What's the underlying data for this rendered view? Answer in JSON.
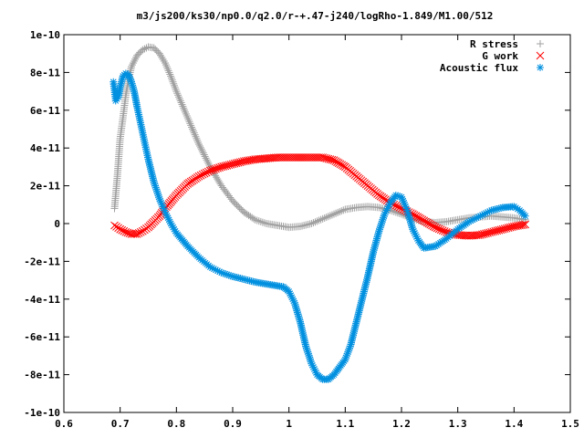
{
  "chart_data": {
    "type": "scatter",
    "title": "m3/js200/ks30/np0.0/q2.0/r-+.47-j240/logRho-1.849/M1.00/512",
    "xlabel": "",
    "ylabel": "",
    "xlim": [
      0.6,
      1.5
    ],
    "ylim": [
      -1e-10,
      1e-10
    ],
    "grid": false,
    "legend_position": "top-right",
    "x_ticks": [
      {
        "value": 0.6,
        "label": "0.6"
      },
      {
        "value": 0.7,
        "label": "0.7"
      },
      {
        "value": 0.8,
        "label": "0.8"
      },
      {
        "value": 0.9,
        "label": "0.9"
      },
      {
        "value": 1.0,
        "label": "1"
      },
      {
        "value": 1.1,
        "label": "1.1"
      },
      {
        "value": 1.2,
        "label": "1.2"
      },
      {
        "value": 1.3,
        "label": "1.3"
      },
      {
        "value": 1.4,
        "label": "1.4"
      },
      {
        "value": 1.5,
        "label": "1.5"
      }
    ],
    "y_ticks": [
      {
        "value": 1e-10,
        "label": "1e-10"
      },
      {
        "value": 8e-11,
        "label": "8e-11"
      },
      {
        "value": 6e-11,
        "label": "6e-11"
      },
      {
        "value": 4e-11,
        "label": "4e-11"
      },
      {
        "value": 2e-11,
        "label": "2e-11"
      },
      {
        "value": 0,
        "label": "0"
      },
      {
        "value": -2e-11,
        "label": "-2e-11"
      },
      {
        "value": -4e-11,
        "label": "-4e-11"
      },
      {
        "value": -6e-11,
        "label": "-6e-11"
      },
      {
        "value": -8e-11,
        "label": "-8e-11"
      },
      {
        "value": -1e-10,
        "label": "-1e-10"
      }
    ],
    "series": [
      {
        "name": "R stress",
        "marker": "plus",
        "color": "#a0a0a0",
        "points": [
          [
            0.69,
            8e-12
          ],
          [
            0.695,
            2.5e-11
          ],
          [
            0.7,
            4.5e-11
          ],
          [
            0.705,
            5.6e-11
          ],
          [
            0.71,
            6.8e-11
          ],
          [
            0.715,
            7.6e-11
          ],
          [
            0.72,
            8.3e-11
          ],
          [
            0.73,
            8.9e-11
          ],
          [
            0.74,
            9.2e-11
          ],
          [
            0.75,
            9.35e-11
          ],
          [
            0.76,
            9.3e-11
          ],
          [
            0.77,
            9e-11
          ],
          [
            0.78,
            8.5e-11
          ],
          [
            0.79,
            7.8e-11
          ],
          [
            0.8,
            7e-11
          ],
          [
            0.82,
            5.6e-11
          ],
          [
            0.84,
            4.2e-11
          ],
          [
            0.86,
            3e-11
          ],
          [
            0.88,
            2e-11
          ],
          [
            0.9,
            1.2e-11
          ],
          [
            0.92,
            6e-12
          ],
          [
            0.94,
            2e-12
          ],
          [
            0.96,
            0.0
          ],
          [
            0.98,
            -1e-12
          ],
          [
            1.0,
            -2e-12
          ],
          [
            1.02,
            -1.5e-12
          ],
          [
            1.04,
            0.0
          ],
          [
            1.06,
            2.5e-12
          ],
          [
            1.08,
            5e-12
          ],
          [
            1.1,
            7.5e-12
          ],
          [
            1.12,
            8.5e-12
          ],
          [
            1.14,
            9e-12
          ],
          [
            1.16,
            8.5e-12
          ],
          [
            1.18,
            7e-12
          ],
          [
            1.2,
            5e-12
          ],
          [
            1.22,
            2.5e-12
          ],
          [
            1.24,
            1e-12
          ],
          [
            1.26,
            5e-13
          ],
          [
            1.28,
            1e-12
          ],
          [
            1.3,
            2e-12
          ],
          [
            1.32,
            3e-12
          ],
          [
            1.34,
            3.5e-12
          ],
          [
            1.36,
            4e-12
          ],
          [
            1.38,
            3.5e-12
          ],
          [
            1.4,
            3e-12
          ],
          [
            1.42,
            2e-12
          ]
        ]
      },
      {
        "name": "G work",
        "marker": "cross",
        "color": "#ff0000",
        "points": [
          [
            0.69,
            -1e-12
          ],
          [
            0.7,
            -3e-12
          ],
          [
            0.71,
            -4.5e-12
          ],
          [
            0.72,
            -5.5e-12
          ],
          [
            0.73,
            -5.5e-12
          ],
          [
            0.74,
            -4e-12
          ],
          [
            0.75,
            -2e-12
          ],
          [
            0.76,
            1e-12
          ],
          [
            0.77,
            4e-12
          ],
          [
            0.78,
            8e-12
          ],
          [
            0.8,
            1.5e-11
          ],
          [
            0.82,
            2.1e-11
          ],
          [
            0.84,
            2.5e-11
          ],
          [
            0.86,
            2.8e-11
          ],
          [
            0.88,
            3e-11
          ],
          [
            0.9,
            3.15e-11
          ],
          [
            0.92,
            3.3e-11
          ],
          [
            0.94,
            3.4e-11
          ],
          [
            0.96,
            3.45e-11
          ],
          [
            0.98,
            3.5e-11
          ],
          [
            1.0,
            3.5e-11
          ],
          [
            1.02,
            3.5e-11
          ],
          [
            1.04,
            3.5e-11
          ],
          [
            1.06,
            3.5e-11
          ],
          [
            1.08,
            3.35e-11
          ],
          [
            1.1,
            3e-11
          ],
          [
            1.12,
            2.5e-11
          ],
          [
            1.14,
            2e-11
          ],
          [
            1.16,
            1.5e-11
          ],
          [
            1.18,
            1.1e-11
          ],
          [
            1.2,
            8e-12
          ],
          [
            1.22,
            5e-12
          ],
          [
            1.24,
            1.5e-12
          ],
          [
            1.26,
            -2e-12
          ],
          [
            1.28,
            -4.5e-12
          ],
          [
            1.3,
            -6e-12
          ],
          [
            1.32,
            -6.5e-12
          ],
          [
            1.34,
            -6e-12
          ],
          [
            1.36,
            -4.5e-12
          ],
          [
            1.38,
            -3e-12
          ],
          [
            1.4,
            -1.5e-12
          ],
          [
            1.42,
            -5e-13
          ]
        ]
      },
      {
        "name": "Acoustic flux",
        "marker": "star",
        "color": "#0090e0",
        "points": [
          [
            0.688,
            7.5e-11
          ],
          [
            0.692,
            6.5e-11
          ],
          [
            0.697,
            6.7e-11
          ],
          [
            0.7,
            7.2e-11
          ],
          [
            0.705,
            7.8e-11
          ],
          [
            0.71,
            7.95e-11
          ],
          [
            0.715,
            7.85e-11
          ],
          [
            0.72,
            7.5e-11
          ],
          [
            0.725,
            7e-11
          ],
          [
            0.73,
            6.2e-11
          ],
          [
            0.74,
            4.8e-11
          ],
          [
            0.75,
            3.4e-11
          ],
          [
            0.76,
            2.2e-11
          ],
          [
            0.77,
            1.3e-11
          ],
          [
            0.78,
            6e-12
          ],
          [
            0.79,
            0.0
          ],
          [
            0.8,
            -5e-12
          ],
          [
            0.82,
            -1.2e-11
          ],
          [
            0.84,
            -1.8e-11
          ],
          [
            0.86,
            -2.3e-11
          ],
          [
            0.88,
            -2.6e-11
          ],
          [
            0.9,
            -2.8e-11
          ],
          [
            0.92,
            -2.95e-11
          ],
          [
            0.94,
            -3.1e-11
          ],
          [
            0.96,
            -3.2e-11
          ],
          [
            0.98,
            -3.3e-11
          ],
          [
            0.99,
            -3.35e-11
          ],
          [
            1.0,
            -3.6e-11
          ],
          [
            1.01,
            -4.2e-11
          ],
          [
            1.02,
            -5.2e-11
          ],
          [
            1.03,
            -6.5e-11
          ],
          [
            1.04,
            -7.4e-11
          ],
          [
            1.05,
            -8e-11
          ],
          [
            1.06,
            -8.25e-11
          ],
          [
            1.07,
            -8.25e-11
          ],
          [
            1.08,
            -8e-11
          ],
          [
            1.09,
            -7.6e-11
          ],
          [
            1.1,
            -7.2e-11
          ],
          [
            1.11,
            -6.4e-11
          ],
          [
            1.12,
            -5.2e-11
          ],
          [
            1.13,
            -4e-11
          ],
          [
            1.14,
            -2.8e-11
          ],
          [
            1.15,
            -1.5e-11
          ],
          [
            1.16,
            -4e-12
          ],
          [
            1.17,
            5e-12
          ],
          [
            1.18,
            1.1e-11
          ],
          [
            1.19,
            1.5e-11
          ],
          [
            1.2,
            1.4e-11
          ],
          [
            1.21,
            7e-12
          ],
          [
            1.22,
            -3e-12
          ],
          [
            1.23,
            -9e-12
          ],
          [
            1.24,
            -1.3e-11
          ],
          [
            1.26,
            -1.2e-11
          ],
          [
            1.28,
            -8e-12
          ],
          [
            1.3,
            -3e-12
          ],
          [
            1.32,
            1e-12
          ],
          [
            1.34,
            4e-12
          ],
          [
            1.36,
            7e-12
          ],
          [
            1.38,
            8.5e-12
          ],
          [
            1.4,
            9e-12
          ],
          [
            1.41,
            7e-12
          ],
          [
            1.42,
            4e-12
          ]
        ]
      }
    ]
  }
}
